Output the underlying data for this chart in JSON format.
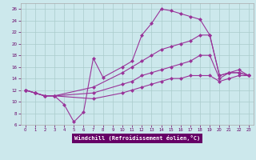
{
  "background_color": "#cce8ec",
  "plot_bg": "#cce8ec",
  "grid_color": "#aacccc",
  "line_color": "#993399",
  "marker": "D",
  "markersize": 2.5,
  "linewidth": 0.8,
  "xlim": [
    -0.5,
    23.5
  ],
  "ylim": [
    6,
    27
  ],
  "xticks": [
    0,
    1,
    2,
    3,
    4,
    5,
    6,
    7,
    8,
    9,
    10,
    11,
    12,
    13,
    14,
    15,
    16,
    17,
    18,
    19,
    20,
    21,
    22,
    23
  ],
  "yticks": [
    6,
    8,
    10,
    12,
    14,
    16,
    18,
    20,
    22,
    24,
    26
  ],
  "xlabel": "Windchill (Refroidissement éolien,°C)",
  "xlabel_bg": "#660066",
  "xlabel_color": "#ffffff",
  "curves": [
    {
      "x": [
        0,
        1,
        2,
        3,
        4,
        5,
        6,
        7,
        8,
        10,
        11,
        12,
        13,
        14,
        15,
        16,
        17,
        18,
        19,
        20,
        21,
        22,
        23
      ],
      "y": [
        12,
        11.5,
        11,
        11,
        9.5,
        6.5,
        8.2,
        17.5,
        14.2,
        16,
        17,
        21.5,
        23.5,
        26,
        25.7,
        25.2,
        24.7,
        24.2,
        21.5,
        14.5,
        15,
        15,
        14.5
      ]
    },
    {
      "x": [
        0,
        1,
        2,
        3,
        7,
        10,
        11,
        12,
        13,
        14,
        15,
        16,
        17,
        18,
        19,
        20,
        21,
        22,
        23
      ],
      "y": [
        12,
        11.5,
        11,
        11,
        12.5,
        15,
        16,
        17,
        18,
        19,
        19.5,
        20,
        20.5,
        21.5,
        21.5,
        14.5,
        15,
        15.5,
        14.5
      ]
    },
    {
      "x": [
        0,
        1,
        2,
        3,
        7,
        10,
        11,
        12,
        13,
        14,
        15,
        16,
        17,
        18,
        19,
        20,
        21,
        22,
        23
      ],
      "y": [
        12,
        11.5,
        11,
        11,
        11.5,
        13,
        13.5,
        14.5,
        15,
        15.5,
        16,
        16.5,
        17,
        18,
        18,
        14,
        15,
        15,
        14.5
      ]
    },
    {
      "x": [
        0,
        1,
        2,
        3,
        7,
        10,
        11,
        12,
        13,
        14,
        15,
        16,
        17,
        18,
        19,
        20,
        21,
        22,
        23
      ],
      "y": [
        12,
        11.5,
        11,
        11,
        10.5,
        11.5,
        12,
        12.5,
        13,
        13.5,
        14,
        14,
        14.5,
        14.5,
        14.5,
        13.5,
        14,
        14.5,
        14.5
      ]
    }
  ]
}
